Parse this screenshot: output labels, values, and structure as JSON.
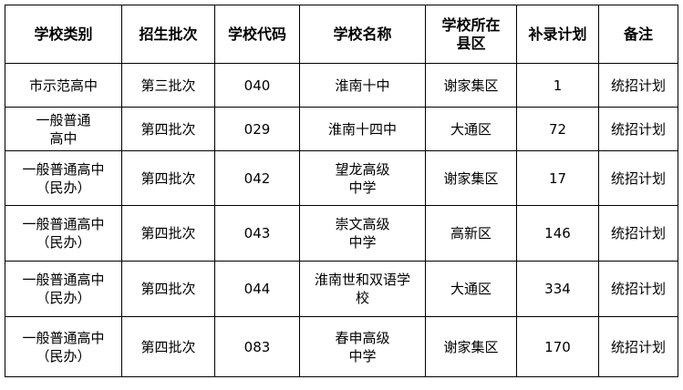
{
  "table": {
    "header": [
      "学校类别",
      "招生批次",
      "学校代码",
      "学校名称",
      "学校所在县区",
      "补录计划",
      "备注"
    ],
    "rows": [
      [
        "市示范高中",
        "第三批次",
        "040",
        "淮南十中",
        "谢家集区",
        1,
        "统招计划"
      ],
      [
        "一般普通高中",
        "第四批次",
        "029",
        "淮南十四中",
        "大通区",
        72,
        "统招计划"
      ],
      [
        "一般普通高中（民办）",
        "第四批次",
        "042",
        "望龙高级中学",
        "谢家集区",
        17,
        "统招计划"
      ],
      [
        "一般普通高中（民办）",
        "第四批次",
        "043",
        "崇文高级中学",
        "高新区",
        146,
        "统招计划"
      ],
      [
        "一般普通高中（民办）",
        "第四批次",
        "044",
        "淮南世和双语学校",
        "大通区",
        334,
        "统招计划"
      ],
      [
        "一般普通高中（民办）",
        "第四批次",
        "083",
        "春申高级中学",
        "谢家集区",
        170,
        "统招计划"
      ]
    ]
  }
}
